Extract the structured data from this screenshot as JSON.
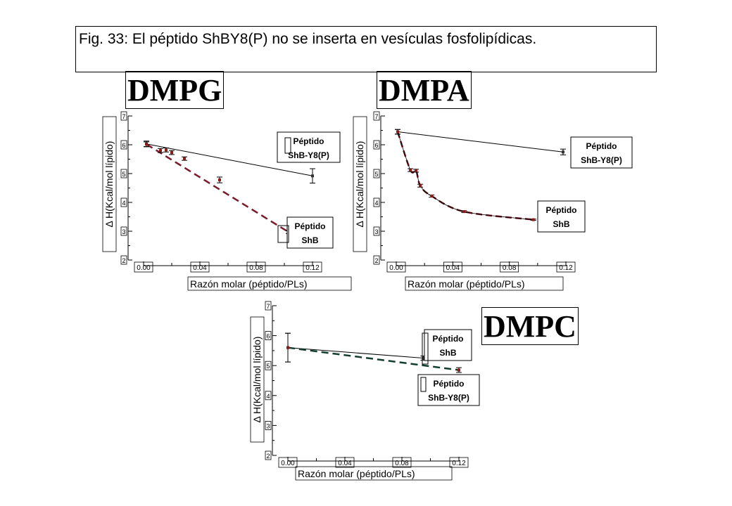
{
  "caption": "Fig. 33: El péptido ShBY8(P) no se inserta en vesículas fosfolipídicas.",
  "colors": {
    "solid_line": "#000000",
    "dmpg_dash": "#7a1a2a",
    "dmpa_dash": "#6b1520",
    "dmpc_dash": "#123d2e",
    "marker": "#8b1a1a"
  },
  "chart_data": [
    {
      "type": "scatter",
      "title": "DMPG",
      "xlabel": "Razón molar (péptido/PLs)",
      "ylabel": "Δ H(Kcal/mol lípido)",
      "xlim": [
        0,
        0.12
      ],
      "ylim": [
        2,
        7
      ],
      "x_ticks": [
        "0.00",
        "0.04",
        "0.08",
        "0.12"
      ],
      "y_ticks": [
        "2",
        "3",
        "4",
        "5",
        "6",
        "7"
      ],
      "series": [
        {
          "name": "Péptido ShB-Y8(P)",
          "style": "solid",
          "points": [
            {
              "x": 0.002,
              "y": 6.03,
              "err": 0.1
            },
            {
              "x": 0.12,
              "y": 4.92,
              "err": 0.25
            }
          ]
        },
        {
          "name": "Péptido ShB",
          "style": "dashed",
          "points": [
            {
              "x": 0.002,
              "y": 6.02,
              "err": 0.08
            },
            {
              "x": 0.012,
              "y": 5.8,
              "err": 0.07
            },
            {
              "x": 0.016,
              "y": 5.82,
              "err": 0.07
            },
            {
              "x": 0.02,
              "y": 5.73,
              "err": 0.07
            },
            {
              "x": 0.029,
              "y": 5.52,
              "err": 0.06
            },
            {
              "x": 0.054,
              "y": 4.78,
              "err": 0.1
            },
            {
              "x": 0.103,
              "y": 2.97,
              "err": 0.05
            }
          ]
        }
      ]
    },
    {
      "type": "scatter",
      "title": "DMPA",
      "xlabel": "Razón molar (péptido/PLs)",
      "ylabel": "Δ H(Kcal/mol lípido)",
      "xlim": [
        0,
        0.12
      ],
      "ylim": [
        2,
        7
      ],
      "x_ticks": [
        "0.00",
        "0.04",
        "0.08",
        "0.12"
      ],
      "y_ticks": [
        "2",
        "3",
        "4",
        "5",
        "6",
        "7"
      ],
      "series": [
        {
          "name": "Péptido ShB-Y8(P)",
          "style": "solid",
          "points": [
            {
              "x": 0.001,
              "y": 6.45,
              "err": 0.08
            },
            {
              "x": 0.118,
              "y": 5.75,
              "err": 0.1
            }
          ]
        },
        {
          "name": "Péptido ShB",
          "style": "dashed",
          "points": [
            {
              "x": 0.001,
              "y": 6.45,
              "err": 0.08
            },
            {
              "x": 0.01,
              "y": 5.12,
              "err": 0.05
            },
            {
              "x": 0.014,
              "y": 5.1,
              "err": 0.05
            },
            {
              "x": 0.017,
              "y": 4.58,
              "err": 0.05
            },
            {
              "x": 0.025,
              "y": 4.22,
              "err": 0.04
            },
            {
              "x": 0.048,
              "y": 3.68,
              "err": 0.03
            },
            {
              "x": 0.097,
              "y": 3.4,
              "err": 0.02
            }
          ]
        }
      ]
    },
    {
      "type": "scatter",
      "title": "DMPC",
      "xlabel": "Razón molar (péptido/PLs)",
      "ylabel": "Δ H(Kcal/mol lípido)",
      "xlim": [
        0,
        0.12
      ],
      "ylim": [
        2,
        7
      ],
      "x_ticks": [
        "0.00",
        "0.04",
        "0.08",
        "0.12"
      ],
      "y_ticks": [
        "2",
        "3",
        "4",
        "5",
        "6",
        "7"
      ],
      "series": [
        {
          "name": "Péptido ShB",
          "style": "solid",
          "points": [
            {
              "x": 0.0,
              "y": 5.6,
              "err": 0.48
            },
            {
              "x": 0.095,
              "y": 5.25,
              "err": 0.07
            }
          ]
        },
        {
          "name": "Péptido ShB-Y8(P)",
          "style": "dashed",
          "points": [
            {
              "x": 0.0,
              "y": 5.6,
              "err": 0.48
            },
            {
              "x": 0.12,
              "y": 4.85,
              "err": 0.08
            }
          ]
        }
      ]
    }
  ],
  "legend_boxes": {
    "dmpg_y8": [
      "Péptido",
      "ShB-Y8(P)"
    ],
    "dmpg_shb": [
      "Péptido",
      "ShB"
    ],
    "dmpa_y8": [
      "Péptido",
      "ShB-Y8(P)"
    ],
    "dmpa_shb": [
      "Péptido",
      "ShB"
    ],
    "dmpc_shb": [
      "Péptido",
      "ShB"
    ],
    "dmpc_y8": [
      "Péptido",
      "ShB-Y8(P)"
    ]
  }
}
